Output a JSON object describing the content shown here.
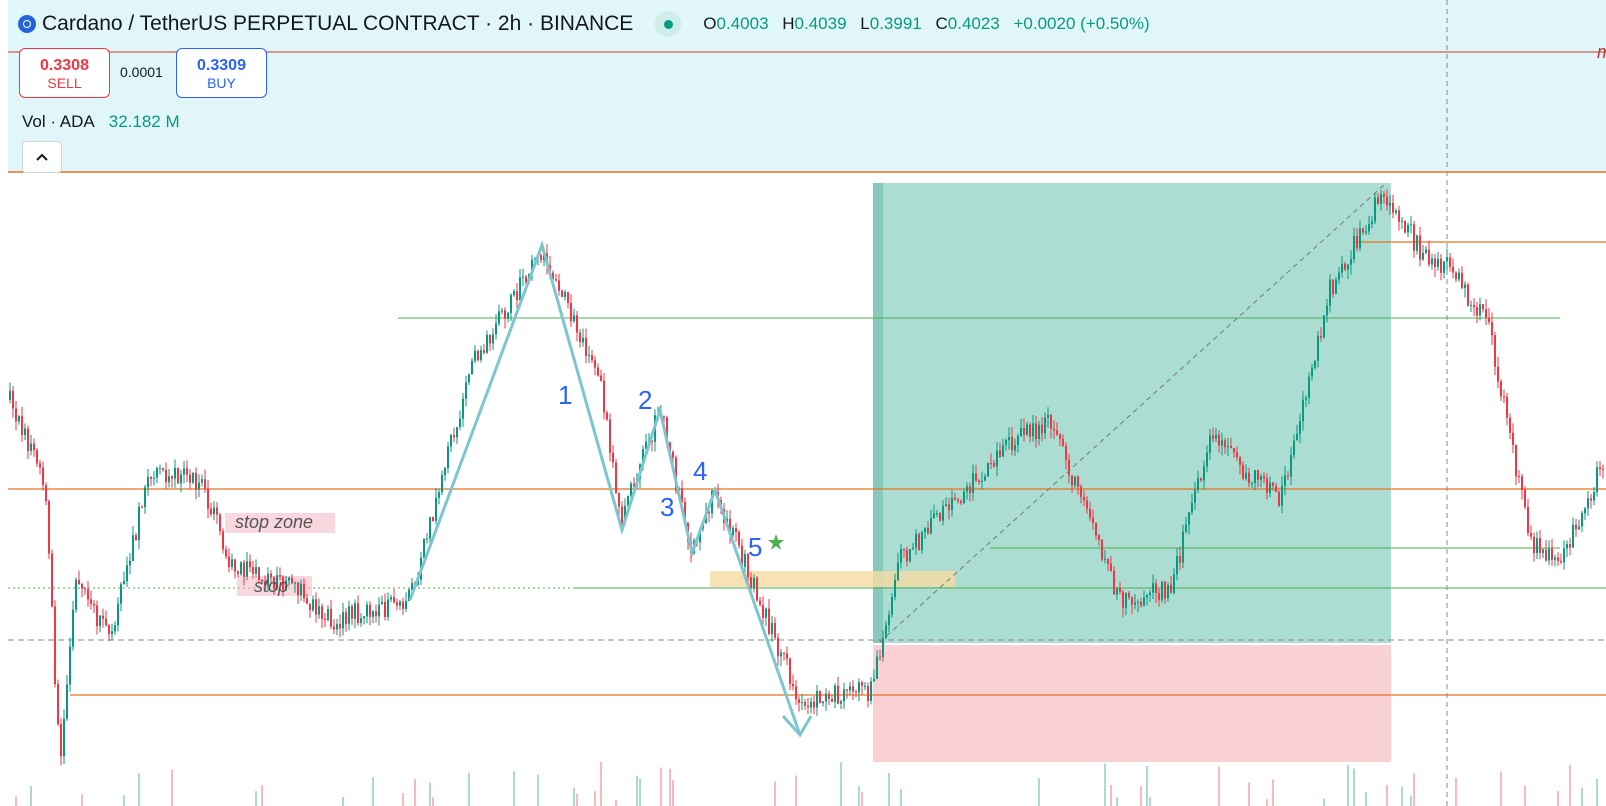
{
  "header": {
    "symbol_title": "Cardano / TetherUS PERPETUAL CONTRACT · 2h · BINANCE",
    "logo_icon": "cardano-logo-icon",
    "ohlc": {
      "o_label": "O",
      "o_value": "0.4003",
      "h_label": "H",
      "h_value": "0.4039",
      "l_label": "L",
      "l_value": "0.3991",
      "c_label": "C",
      "c_value": "0.4023",
      "change": "+0.0020 (+0.50%)"
    }
  },
  "trade": {
    "sell_price": "0.3308",
    "sell_label": "SELL",
    "spread": "0.0001",
    "buy_price": "0.3309",
    "buy_label": "BUY"
  },
  "volume": {
    "label": "Vol · ADA",
    "value": "32.182 M"
  },
  "collapse_icon": "chevron-up-icon",
  "annotations": {
    "wave_1": "1",
    "wave_2": "2",
    "wave_3": "3",
    "wave_4": "4",
    "wave_5": "5",
    "stop_zone": "stop zone",
    "stop": "stop",
    "right_edge_mark": "m"
  },
  "colors": {
    "up": "#089981",
    "down": "#f23645",
    "header_bg": "#e1f6f8",
    "accent_blue": "#2962ff",
    "orange_line": "#e8711c",
    "green_line": "#4caf50",
    "wave_line": "#7cc6d0",
    "target_zone": "#7fcbbb",
    "stop_zone": "#f8c9cd"
  },
  "chart_data": {
    "type": "candlestick",
    "title": "",
    "series": [
      {
        "values": [
          0.362,
          0.357,
          0.35,
          0.345,
          0.339,
          0.345,
          0.35,
          0.352,
          0.348,
          0.344,
          0.341,
          0.346,
          0.353,
          0.36,
          0.37,
          0.38,
          0.387,
          0.39,
          0.385,
          0.37,
          0.365,
          0.362,
          0.36,
          0.356,
          0.352,
          0.347,
          0.343,
          0.348,
          0.355,
          0.36,
          0.365,
          0.37,
          0.372,
          0.368,
          0.364,
          0.36,
          0.362,
          0.365,
          0.363,
          0.36,
          0.357,
          0.364,
          0.37,
          0.378,
          0.382,
          0.38,
          0.378,
          0.382,
          0.384,
          0.386,
          0.392,
          0.396,
          0.398,
          0.395,
          0.39,
          0.385
        ]
      }
    ]
  }
}
